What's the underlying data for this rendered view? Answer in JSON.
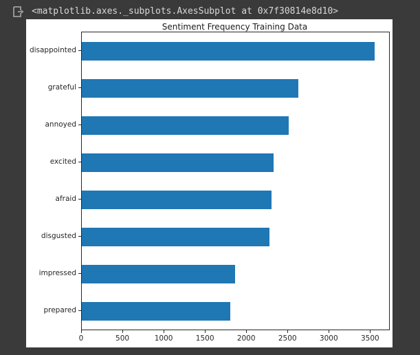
{
  "output_cell": {
    "repr_text": "<matplotlib.axes._subplots.AxesSubplot at 0x7f30814e8d10>",
    "icon": "cell-output-indicator-icon"
  },
  "colors": {
    "page_background": "#3a3a3a",
    "figure_background": "#ffffff",
    "bar": "#1f77b4",
    "axis": "#262626",
    "repr_text": "#d8d8d8",
    "icon_gray": "#9e9e9e"
  },
  "chart_data": {
    "type": "bar",
    "orientation": "horizontal",
    "title": "Sentiment Frequency Training Data",
    "categories": [
      "disappointed",
      "grateful",
      "annoyed",
      "excited",
      "afraid",
      "disgusted",
      "impressed",
      "prepared"
    ],
    "values": [
      3545,
      2620,
      2510,
      2320,
      2300,
      2270,
      1855,
      1795
    ],
    "xlabel": "",
    "ylabel": "",
    "xlim": [
      0,
      3722
    ],
    "x_ticks": [
      0,
      500,
      1000,
      1500,
      2000,
      2500,
      3000,
      3500
    ],
    "bar_color": "#1f77b4",
    "bar_fraction_of_slot": 0.5,
    "grid": false,
    "legend": null
  }
}
